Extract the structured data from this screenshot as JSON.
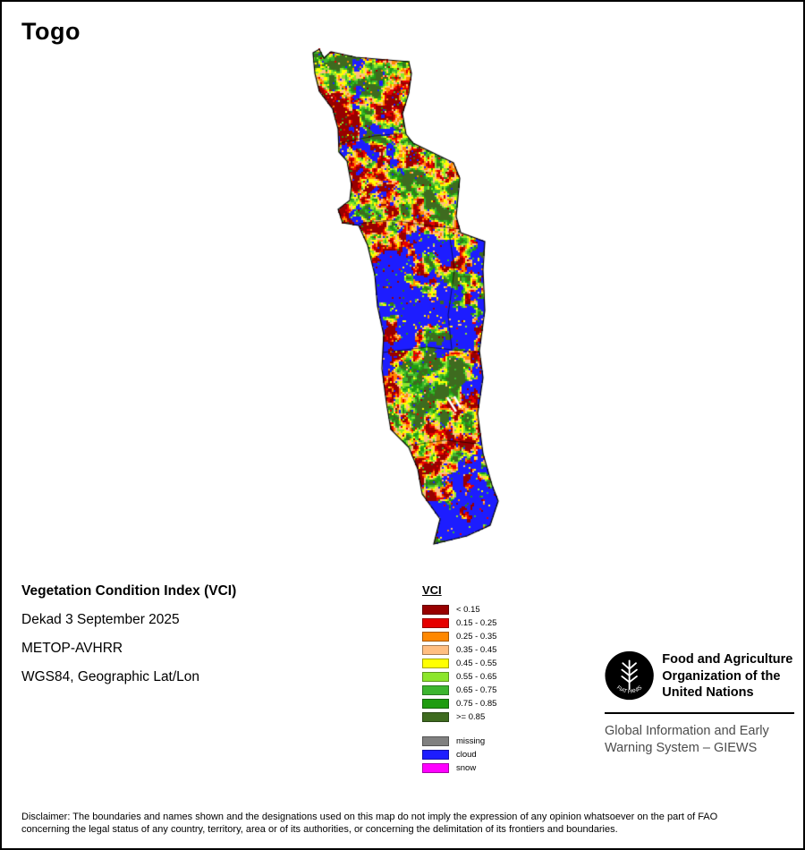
{
  "page": {
    "title": "Togo"
  },
  "info": {
    "title": "Vegetation Condition Index (VCI)",
    "dekad": "Dekad 3 September 2025",
    "sensor": "METOP-AVHRR",
    "projection": "WGS84, Geographic Lat/Lon"
  },
  "legend": {
    "title": "VCI",
    "classes": [
      {
        "label": "< 0.15",
        "color": "#980000"
      },
      {
        "label": "0.15 - 0.25",
        "color": "#e60000"
      },
      {
        "label": "0.25 - 0.35",
        "color": "#ff8800"
      },
      {
        "label": "0.35 - 0.45",
        "color": "#ffbe82"
      },
      {
        "label": "0.45 - 0.55",
        "color": "#ffff00"
      },
      {
        "label": "0.55 - 0.65",
        "color": "#8ce62b"
      },
      {
        "label": "0.65 - 0.75",
        "color": "#3cb52f"
      },
      {
        "label": "0.75 - 0.85",
        "color": "#1e9c10"
      },
      {
        "label": ">= 0.85",
        "color": "#3e6b1f"
      }
    ],
    "extra_classes": [
      {
        "label": "missing",
        "color": "#808080"
      },
      {
        "label": "cloud",
        "color": "#1d1dff"
      },
      {
        "label": "snow",
        "color": "#ff00ff"
      }
    ]
  },
  "footer": {
    "fao_name": "Food and Agriculture Organization of the United Nations",
    "fao_motto": "FIAT PANIS",
    "giews_name": "Global Information and Early Warning System – GIEWS",
    "disclaimer": "Disclaimer: The boundaries and names shown and the designations used on this map do not imply the expression of any opinion whatsoever on the part of FAO concerning the legal status of any country, territory, area or of its authorities, or concerning the delimitation of its frontiers and boundaries."
  }
}
